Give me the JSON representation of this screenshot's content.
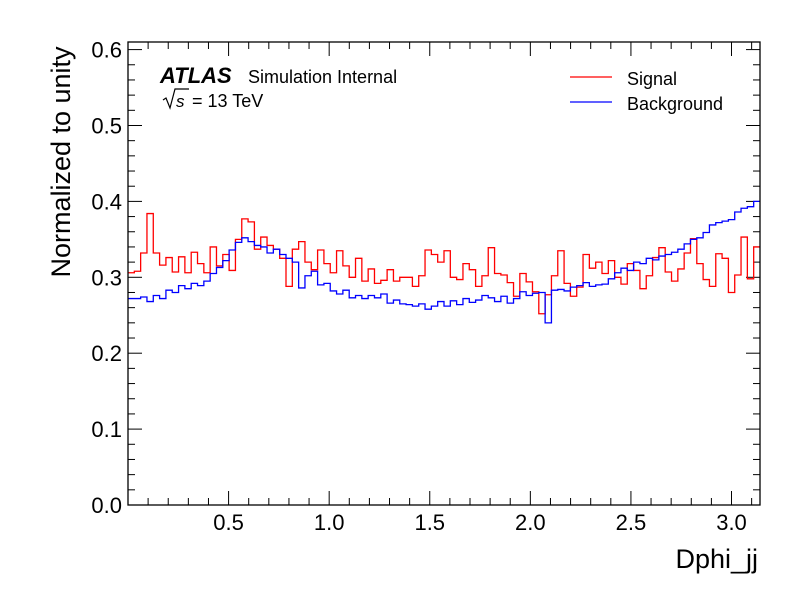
{
  "chart_data": {
    "type": "line",
    "step": true,
    "title": "",
    "experiment_label": "ATLAS",
    "experiment_status": "Simulation Internal",
    "energy_label_prefix": "s",
    "energy_label_value": "= 13 TeV",
    "xlabel": "Dphi_jj",
    "ylabel": "Normalized to unity",
    "xlim": [
      0,
      3.1416
    ],
    "ylim": [
      0,
      0.61
    ],
    "x_ticks": [
      0.5,
      1.0,
      1.5,
      2.0,
      2.5,
      3.0
    ],
    "x_tick_labels": [
      "0.5",
      "1.0",
      "1.5",
      "2.0",
      "2.5",
      "3.0"
    ],
    "y_ticks": [
      0.0,
      0.1,
      0.2,
      0.3,
      0.4,
      0.5,
      0.6
    ],
    "y_tick_labels": [
      "0.0",
      "0.1",
      "0.2",
      "0.3",
      "0.4",
      "0.5",
      "0.6"
    ],
    "grid": false,
    "legend_position": "top-right",
    "nbins": 100,
    "series": [
      {
        "name": "Signal",
        "color": "#ff0000",
        "values": [
          0.306,
          0.308,
          0.332,
          0.384,
          0.332,
          0.316,
          0.326,
          0.307,
          0.327,
          0.306,
          0.333,
          0.318,
          0.306,
          0.34,
          0.315,
          0.33,
          0.309,
          0.35,
          0.377,
          0.373,
          0.337,
          0.353,
          0.342,
          0.337,
          0.325,
          0.288,
          0.337,
          0.347,
          0.32,
          0.31,
          0.336,
          0.318,
          0.306,
          0.335,
          0.315,
          0.3,
          0.325,
          0.295,
          0.311,
          0.292,
          0.296,
          0.31,
          0.295,
          0.3,
          0.3,
          0.288,
          0.302,
          0.336,
          0.33,
          0.32,
          0.335,
          0.3,
          0.297,
          0.318,
          0.31,
          0.288,
          0.302,
          0.339,
          0.305,
          0.303,
          0.293,
          0.275,
          0.305,
          0.294,
          0.281,
          0.252,
          0.277,
          0.302,
          0.335,
          0.292,
          0.275,
          0.287,
          0.33,
          0.312,
          0.32,
          0.305,
          0.322,
          0.3,
          0.291,
          0.318,
          0.309,
          0.285,
          0.302,
          0.326,
          0.339,
          0.307,
          0.295,
          0.311,
          0.332,
          0.351,
          0.318,
          0.297,
          0.288,
          0.331,
          0.325,
          0.28,
          0.303,
          0.353,
          0.298,
          0.34
        ]
      },
      {
        "name": "Background",
        "color": "#0000ff",
        "values": [
          0.272,
          0.272,
          0.274,
          0.268,
          0.276,
          0.272,
          0.283,
          0.28,
          0.289,
          0.285,
          0.292,
          0.289,
          0.295,
          0.305,
          0.313,
          0.322,
          0.336,
          0.346,
          0.352,
          0.347,
          0.342,
          0.34,
          0.332,
          0.337,
          0.33,
          0.325,
          0.32,
          0.286,
          0.302,
          0.308,
          0.29,
          0.292,
          0.282,
          0.278,
          0.283,
          0.273,
          0.276,
          0.272,
          0.276,
          0.273,
          0.278,
          0.266,
          0.27,
          0.265,
          0.264,
          0.262,
          0.265,
          0.258,
          0.262,
          0.268,
          0.262,
          0.269,
          0.264,
          0.272,
          0.267,
          0.27,
          0.276,
          0.273,
          0.268,
          0.275,
          0.266,
          0.272,
          0.281,
          0.276,
          0.279,
          0.28,
          0.24,
          0.283,
          0.284,
          0.282,
          0.287,
          0.289,
          0.293,
          0.288,
          0.29,
          0.291,
          0.298,
          0.306,
          0.312,
          0.309,
          0.32,
          0.318,
          0.325,
          0.323,
          0.328,
          0.33,
          0.333,
          0.337,
          0.344,
          0.35,
          0.352,
          0.359,
          0.369,
          0.372,
          0.374,
          0.376,
          0.386,
          0.391,
          0.393,
          0.4
        ]
      }
    ]
  }
}
